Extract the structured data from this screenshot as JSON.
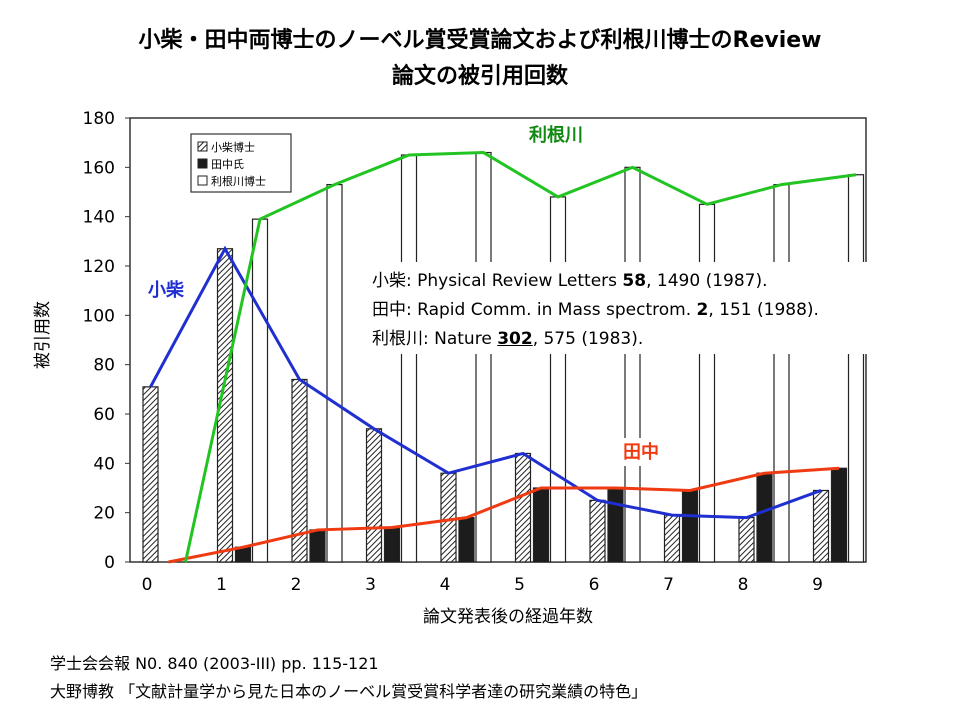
{
  "title_line1": "小柴・田中両博士のノーベル賞受賞論文および利根川博士のReview",
  "title_line2": "論文の被引用回数",
  "chart_data": {
    "type": "bar",
    "xlabel": "論文発表後の経過年数",
    "ylabel": "被引用数",
    "categories": [
      "0",
      "1",
      "2",
      "3",
      "4",
      "5",
      "6",
      "7",
      "8",
      "9"
    ],
    "ylim": [
      0,
      180
    ],
    "yticks": [
      0,
      20,
      40,
      60,
      80,
      100,
      120,
      140,
      160,
      180
    ],
    "legend": [
      "小柴博士",
      "田中氏",
      "利根川博士"
    ],
    "series": [
      {
        "name": "小柴博士",
        "label": "小柴",
        "color": "#1f2fd0",
        "values": [
          71,
          127,
          74,
          54,
          36,
          44,
          25,
          19,
          18,
          29
        ]
      },
      {
        "name": "田中氏",
        "label": "田中",
        "color": "#ef3a12",
        "values": [
          0,
          6,
          13,
          14,
          18,
          30,
          30,
          29,
          36,
          38
        ]
      },
      {
        "name": "利根川博士",
        "label": "利根川",
        "color": "#22c422",
        "values": [
          0,
          139,
          153,
          165,
          166,
          148,
          160,
          145,
          153,
          157
        ]
      }
    ],
    "references": [
      {
        "name": "小柴",
        "before": ": Physical Review Letters ",
        "volume": "58",
        "after": ", 1490 (1987)."
      },
      {
        "name": "田中",
        "before": ": Rapid Comm. in Mass spectrom. ",
        "volume": "2",
        "after": ", 151 (1988)."
      },
      {
        "name": "利根川",
        "before": ": Nature ",
        "volume": "302",
        "after": ", 575 (1983)."
      }
    ]
  },
  "footer": {
    "line1": "学士会会報 N0. 840 (2003-III) pp. 115-121",
    "line2": "大野博教 「文献計量学から見た日本のノーベル賞受賞科学者達の研究業績の特色」"
  }
}
